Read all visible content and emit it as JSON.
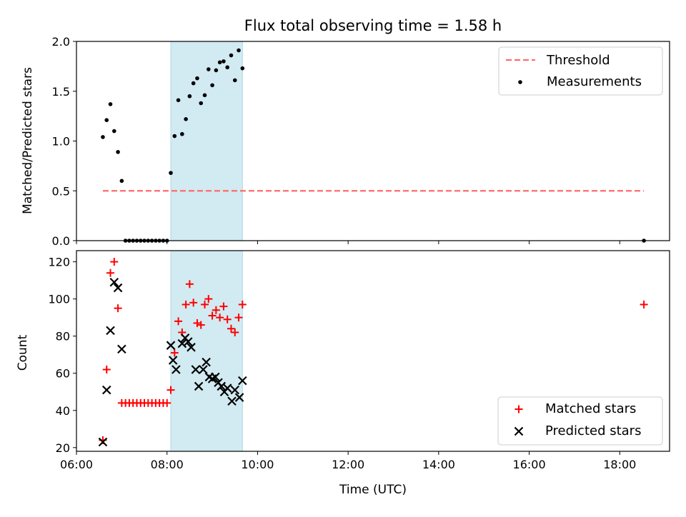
{
  "title": "Flux total observing time = 1.58 h",
  "xlabel": "Time (UTC)",
  "x_ticks": [
    "06:00",
    "08:00",
    "10:00",
    "12:00",
    "14:00",
    "16:00",
    "18:00"
  ],
  "observing_window": {
    "start": "08:05",
    "end": "09:40",
    "color": "#add8e6"
  },
  "colors": {
    "threshold": "#ff6b6b",
    "measurements": "#000000",
    "matched": "#ff0000",
    "predicted": "#000000",
    "window": "#add8e6"
  },
  "chart_data": [
    {
      "type": "scatter",
      "ylabel": "Matched/Predicted stars",
      "ylim": [
        0,
        2.0
      ],
      "y_ticks": [
        "0.0",
        "0.5",
        "1.0",
        "1.5",
        "2.0"
      ],
      "legend_position": "top-right",
      "threshold": {
        "name": "Threshold",
        "value": 0.5,
        "x_range": [
          "06:35",
          "18:32"
        ]
      },
      "series": [
        {
          "name": "Measurements",
          "x": [
            "06:35",
            "06:40",
            "06:45",
            "06:50",
            "06:55",
            "07:00",
            "07:05",
            "07:10",
            "07:15",
            "07:20",
            "07:25",
            "07:30",
            "07:35",
            "07:40",
            "07:45",
            "07:50",
            "07:55",
            "08:00",
            "08:05",
            "08:10",
            "08:15",
            "08:20",
            "08:25",
            "08:30",
            "08:35",
            "08:40",
            "08:45",
            "08:50",
            "08:55",
            "09:00",
            "09:05",
            "09:10",
            "09:15",
            "09:20",
            "09:25",
            "09:30",
            "09:35",
            "09:40",
            "18:32"
          ],
          "values": [
            1.04,
            1.21,
            1.37,
            1.1,
            0.89,
            0.6,
            0.0,
            0.0,
            0.0,
            0.0,
            0.0,
            0.0,
            0.0,
            0.0,
            0.0,
            0.0,
            0.0,
            0.0,
            0.68,
            1.05,
            1.41,
            1.07,
            1.22,
            1.45,
            1.58,
            1.63,
            1.38,
            1.46,
            1.72,
            1.56,
            1.71,
            1.79,
            1.8,
            1.74,
            1.86,
            1.61,
            1.91,
            1.73,
            0.0
          ]
        }
      ]
    },
    {
      "type": "scatter",
      "ylabel": "Count",
      "ylim": [
        18,
        126
      ],
      "y_ticks": [
        "20",
        "40",
        "60",
        "80",
        "100",
        "120"
      ],
      "legend_position": "bottom-right",
      "series": [
        {
          "name": "Matched stars",
          "x": [
            "06:35",
            "06:40",
            "06:45",
            "06:50",
            "06:55",
            "07:00",
            "07:05",
            "07:10",
            "07:15",
            "07:20",
            "07:25",
            "07:30",
            "07:35",
            "07:40",
            "07:45",
            "07:50",
            "07:55",
            "08:00",
            "08:05",
            "08:10",
            "08:15",
            "08:20",
            "08:25",
            "08:30",
            "08:35",
            "08:40",
            "08:45",
            "08:50",
            "08:55",
            "09:00",
            "09:05",
            "09:10",
            "09:15",
            "09:20",
            "09:25",
            "09:30",
            "09:35",
            "09:40",
            "18:32"
          ],
          "values": [
            24,
            62,
            114,
            120,
            95,
            44,
            44,
            44,
            44,
            44,
            44,
            44,
            44,
            44,
            44,
            44,
            44,
            44,
            51,
            71,
            88,
            82,
            97,
            108,
            98,
            87,
            86,
            97,
            100,
            91,
            94,
            90,
            96,
            89,
            84,
            82,
            90,
            97,
            97
          ]
        },
        {
          "name": "Predicted stars",
          "x": [
            "06:35",
            "06:40",
            "06:45",
            "06:50",
            "06:55",
            "07:00",
            "08:05",
            "08:08",
            "08:12",
            "08:20",
            "08:24",
            "08:28",
            "08:32",
            "08:38",
            "08:42",
            "08:48",
            "08:52",
            "08:56",
            "09:00",
            "09:04",
            "09:08",
            "09:12",
            "09:16",
            "09:20",
            "09:26",
            "09:30",
            "09:36",
            "09:40"
          ],
          "values": [
            23,
            51,
            83,
            109,
            106,
            73,
            75,
            67,
            62,
            76,
            79,
            77,
            74,
            62,
            53,
            62,
            66,
            58,
            57,
            58,
            55,
            53,
            50,
            52,
            45,
            51,
            47,
            56
          ]
        }
      ]
    }
  ]
}
